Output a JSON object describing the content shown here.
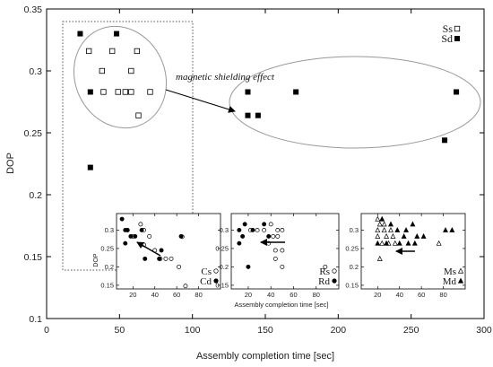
{
  "chart_data": [
    {
      "id": "main",
      "type": "scatter",
      "title": "",
      "xlabel": "Assembly completion time [sec]",
      "ylabel": "DOP",
      "xlim": [
        0,
        300
      ],
      "ylim": [
        0.1,
        0.35
      ],
      "xticks": [
        0,
        50,
        100,
        150,
        200,
        250,
        300
      ],
      "yticks": [
        0.1,
        0.15,
        0.2,
        0.25,
        0.3,
        0.35
      ],
      "xtick_labels": [
        "0",
        "50",
        "100",
        "150",
        "200",
        "250",
        "300"
      ],
      "ytick_labels": [
        "0.1",
        "0.15",
        "0.2",
        "0.25",
        "0.3",
        "0.35"
      ],
      "legend_position": "top-right",
      "annotation": "magnetic shielding effect",
      "series": [
        {
          "name": "Ss",
          "marker": "open-square",
          "points": [
            [
              29,
              0.316
            ],
            [
              45,
              0.316
            ],
            [
              62,
              0.316
            ],
            [
              38,
              0.3
            ],
            [
              58,
              0.3
            ],
            [
              49,
              0.283
            ],
            [
              54,
              0.283
            ],
            [
              58,
              0.283
            ],
            [
              71,
              0.283
            ],
            [
              39,
              0.283
            ],
            [
              63,
              0.264
            ]
          ]
        },
        {
          "name": "Sd",
          "marker": "filled-square",
          "points": [
            [
              23,
              0.33
            ],
            [
              48,
              0.33
            ],
            [
              30,
              0.283
            ],
            [
              30,
              0.222
            ],
            [
              138,
              0.283
            ],
            [
              138,
              0.264
            ],
            [
              145,
              0.264
            ],
            [
              171,
              0.283
            ],
            [
              273,
              0.244
            ],
            [
              281,
              0.283
            ]
          ]
        }
      ]
    },
    {
      "id": "inset-c",
      "type": "scatter",
      "xlabel": "",
      "ylabel": "DOP",
      "xlim": [
        5,
        100
      ],
      "ylim": [
        0.14,
        0.345
      ],
      "xticks": [
        20,
        40,
        60,
        80
      ],
      "yticks": [
        0.15,
        0.2,
        0.25,
        0.3
      ],
      "xtick_labels": [
        "20",
        "40",
        "60",
        "80"
      ],
      "ytick_labels": [
        "0.15",
        "0.2",
        "0.25",
        "0.3"
      ],
      "legend_position": "bottom-right",
      "series": [
        {
          "name": "Cs",
          "marker": "open-circle",
          "points": [
            [
              15,
              0.3
            ],
            [
              20,
              0.283
            ],
            [
              27,
              0.316
            ],
            [
              30,
              0.3
            ],
            [
              35,
              0.283
            ],
            [
              30,
              0.26
            ],
            [
              40,
              0.245
            ],
            [
              45,
              0.222
            ],
            [
              50,
              0.222
            ],
            [
              55,
              0.222
            ],
            [
              62,
              0.2
            ],
            [
              68,
              0.148
            ],
            [
              65,
              0.282
            ]
          ]
        },
        {
          "name": "Cd",
          "marker": "filled-circle",
          "points": [
            [
              10,
              0.33
            ],
            [
              13,
              0.3
            ],
            [
              15,
              0.3
            ],
            [
              13,
              0.264
            ],
            [
              18,
              0.283
            ],
            [
              28,
              0.3
            ],
            [
              22,
              0.283
            ],
            [
              31,
              0.222
            ],
            [
              44,
              0.222
            ],
            [
              46,
              0.245
            ],
            [
              64,
              0.283
            ]
          ]
        }
      ]
    },
    {
      "id": "inset-r",
      "type": "scatter",
      "xlabel": "Assembly completion time [sec]",
      "ylabel": "",
      "xlim": [
        5,
        100
      ],
      "ylim": [
        0.14,
        0.345
      ],
      "xticks": [
        20,
        40,
        60,
        80
      ],
      "yticks": [
        0.15,
        0.2,
        0.25,
        0.3
      ],
      "xtick_labels": [
        "20",
        "40",
        "60",
        "80"
      ],
      "ytick_labels": [
        "0.15",
        "0.2",
        "0.25",
        "0.3"
      ],
      "legend_position": "bottom-right",
      "series": [
        {
          "name": "Rs",
          "marker": "open-circle",
          "points": [
            [
              22,
              0.3
            ],
            [
              28,
              0.3
            ],
            [
              34,
              0.3
            ],
            [
              40,
              0.316
            ],
            [
              46,
              0.3
            ],
            [
              50,
              0.3
            ],
            [
              42,
              0.283
            ],
            [
              46,
              0.283
            ],
            [
              38,
              0.264
            ],
            [
              44,
              0.245
            ],
            [
              50,
              0.245
            ],
            [
              44,
              0.222
            ],
            [
              50,
              0.2
            ],
            [
              88,
              0.2
            ]
          ]
        },
        {
          "name": "Rd",
          "marker": "filled-circle",
          "points": [
            [
              12,
              0.3
            ],
            [
              15,
              0.283
            ],
            [
              17,
              0.316
            ],
            [
              12,
              0.264
            ],
            [
              24,
              0.3
            ],
            [
              34,
              0.316
            ],
            [
              38,
              0.283
            ],
            [
              20,
              0.2
            ]
          ]
        }
      ]
    },
    {
      "id": "inset-m",
      "type": "scatter",
      "xlabel": "",
      "ylabel": "",
      "xlim": [
        5,
        100
      ],
      "ylim": [
        0.14,
        0.345
      ],
      "xticks": [
        20,
        40,
        60,
        80
      ],
      "yticks": [
        0.15,
        0.2,
        0.25,
        0.3
      ],
      "xtick_labels": [
        "20",
        "40",
        "60",
        "80"
      ],
      "ytick_labels": [
        "0.15",
        "0.2",
        "0.25",
        "0.3"
      ],
      "legend_position": "bottom-right",
      "series": [
        {
          "name": "Ms",
          "marker": "open-triangle",
          "points": [
            [
              20,
              0.33
            ],
            [
              22,
              0.316
            ],
            [
              26,
              0.316
            ],
            [
              20,
              0.3
            ],
            [
              26,
              0.3
            ],
            [
              32,
              0.3
            ],
            [
              20,
              0.283
            ],
            [
              28,
              0.283
            ],
            [
              34,
              0.283
            ],
            [
              24,
              0.264
            ],
            [
              30,
              0.264
            ],
            [
              36,
              0.264
            ],
            [
              76,
              0.264
            ],
            [
              22,
              0.222
            ]
          ]
        },
        {
          "name": "Md",
          "marker": "filled-triangle",
          "points": [
            [
              24,
              0.33
            ],
            [
              32,
              0.316
            ],
            [
              38,
              0.3
            ],
            [
              46,
              0.3
            ],
            [
              52,
              0.316
            ],
            [
              56,
              0.283
            ],
            [
              44,
              0.283
            ],
            [
              40,
              0.264
            ],
            [
              48,
              0.264
            ],
            [
              54,
              0.264
            ],
            [
              20,
              0.264
            ],
            [
              28,
              0.264
            ],
            [
              62,
              0.283
            ],
            [
              82,
              0.3
            ],
            [
              88,
              0.3
            ]
          ]
        }
      ]
    }
  ]
}
